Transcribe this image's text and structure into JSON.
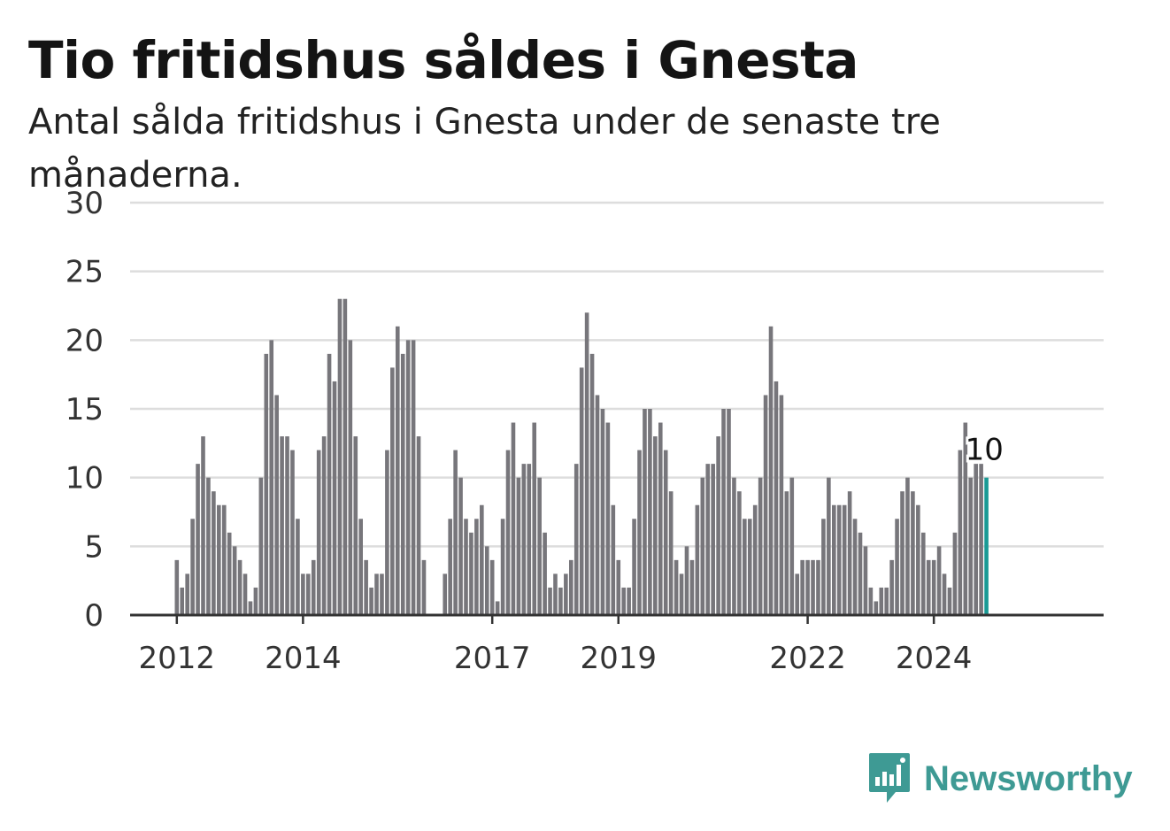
{
  "title": "Tio fritidshus såldes i Gnesta",
  "subtitle": "Antal sålda fritidshus i Gnesta under de senaste tre månaderna.",
  "brand": {
    "name": "Newsworthy",
    "icon": "newsworthy-logo-icon",
    "color": "#3e9a94"
  },
  "colors": {
    "bar": "#77767b",
    "highlight": "#1a9a95",
    "grid": "#dddddd",
    "axis": "#333333"
  },
  "chart_data": {
    "type": "bar",
    "start": "2012-01",
    "values": [
      4,
      2,
      3,
      7,
      11,
      13,
      10,
      9,
      8,
      8,
      6,
      5,
      4,
      3,
      1,
      2,
      10,
      19,
      20,
      16,
      13,
      13,
      12,
      7,
      3,
      3,
      4,
      12,
      13,
      19,
      17,
      23,
      23,
      20,
      13,
      7,
      4,
      2,
      3,
      3,
      12,
      18,
      21,
      19,
      20,
      20,
      13,
      4,
      null,
      null,
      null,
      3,
      7,
      12,
      10,
      7,
      6,
      7,
      8,
      5,
      4,
      1,
      7,
      12,
      14,
      10,
      11,
      11,
      14,
      10,
      6,
      2,
      3,
      2,
      3,
      4,
      11,
      18,
      22,
      19,
      16,
      15,
      14,
      8,
      4,
      2,
      2,
      7,
      12,
      15,
      15,
      13,
      14,
      12,
      9,
      4,
      3,
      5,
      4,
      8,
      10,
      11,
      11,
      13,
      15,
      15,
      10,
      9,
      7,
      7,
      8,
      10,
      16,
      21,
      17,
      16,
      9,
      10,
      3,
      4,
      4,
      4,
      4,
      7,
      10,
      8,
      8,
      8,
      9,
      7,
      6,
      5,
      2,
      1,
      2,
      2,
      4,
      7,
      9,
      10,
      9,
      8,
      6,
      4,
      4,
      5,
      3,
      2,
      6,
      12,
      14,
      10,
      11,
      11,
      10
    ],
    "highlight_last": true,
    "highlight_label": "10",
    "x_ticks": [
      "2012",
      "2014",
      "2017",
      "2019",
      "2022",
      "2024"
    ],
    "y_ticks": [
      "0",
      "5",
      "10",
      "15",
      "20",
      "25",
      "30"
    ],
    "ylim": [
      0,
      30
    ],
    "grid": true,
    "legend": "none"
  }
}
